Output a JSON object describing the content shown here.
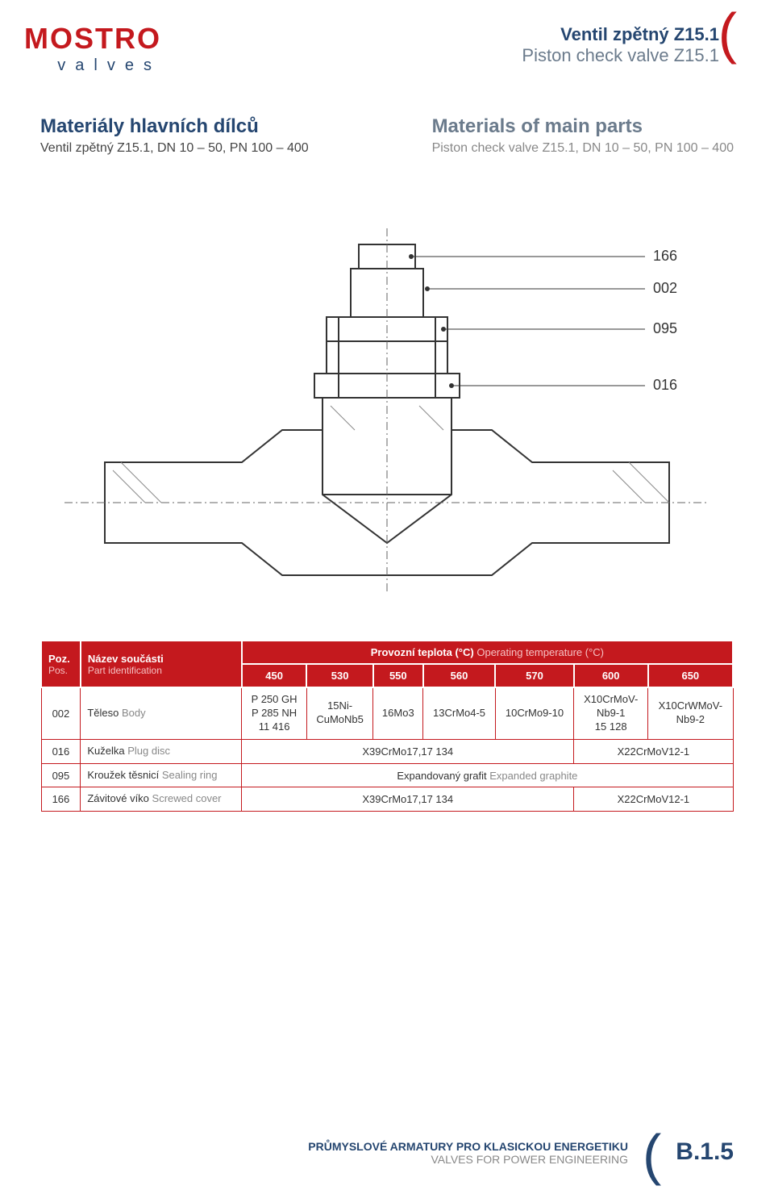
{
  "logo": {
    "line1": "MOSTRO",
    "line2": "valves"
  },
  "title": {
    "line1": "Ventil zpětný Z15.1",
    "line2": "Piston check valve Z15.1"
  },
  "subheading": {
    "left": {
      "heading": "Materiály hlavních dílců",
      "sub": "Ventil zpětný Z15.1, DN 10 – 50, PN 100 – 400"
    },
    "right": {
      "heading": "Materials of main parts",
      "sub": "Piston check valve Z15.1, DN 10 – 50, PN 100 – 400"
    }
  },
  "diagram_labels": [
    "166",
    "002",
    "095",
    "016"
  ],
  "table": {
    "head": {
      "pos_main": "Poz.",
      "pos_sub": "Pos.",
      "name_main": "Název součásti",
      "name_sub": "Part identification",
      "temp_main": "Provozní teplota (°C)",
      "temp_sub": "Operating temperature (°C)",
      "temps": [
        "450",
        "530",
        "550",
        "560",
        "570",
        "600",
        "650"
      ]
    },
    "rows": [
      {
        "pos": "002",
        "name_main": "Těleso",
        "name_sub": "Body",
        "cells": [
          "P 250 GH\nP 285 NH\n11 416",
          "15Ni-\nCuMoNb5",
          "16Mo3",
          "13CrMo4-5",
          "10CrMo9-10",
          "X10CrMoV-\nNb9-1\n15 128",
          "X10CrWMoV-\nNb9-2"
        ]
      },
      {
        "pos": "016",
        "name_main": "Kuželka",
        "name_sub": "Plug disc",
        "merged": [
          {
            "span": 5,
            "text": "X39CrMo17,17 134"
          },
          {
            "span": 2,
            "text": "X22CrMoV12-1"
          }
        ]
      },
      {
        "pos": "095",
        "name_main": "Kroužek těsnicí",
        "name_sub": "Sealing ring",
        "merged": [
          {
            "span": 7,
            "text_main": "Expandovaný grafit",
            "text_sub": "Expanded graphite"
          }
        ]
      },
      {
        "pos": "166",
        "name_main": "Závitové víko",
        "name_sub": "Screwed cover",
        "merged": [
          {
            "span": 5,
            "text": "X39CrMo17,17 134"
          },
          {
            "span": 2,
            "text": "X22CrMoV12-1"
          }
        ]
      }
    ]
  },
  "footer": {
    "line1": "PRŮMYSLOVÉ ARMATURY PRO KLASICKOU ENERGETIKU",
    "line2": "VALVES FOR POWER ENGINEERING",
    "page": "B.1.5"
  },
  "colors": {
    "brand_red": "#c4191e",
    "brand_blue": "#254670",
    "grey": "#6b7b8c"
  }
}
